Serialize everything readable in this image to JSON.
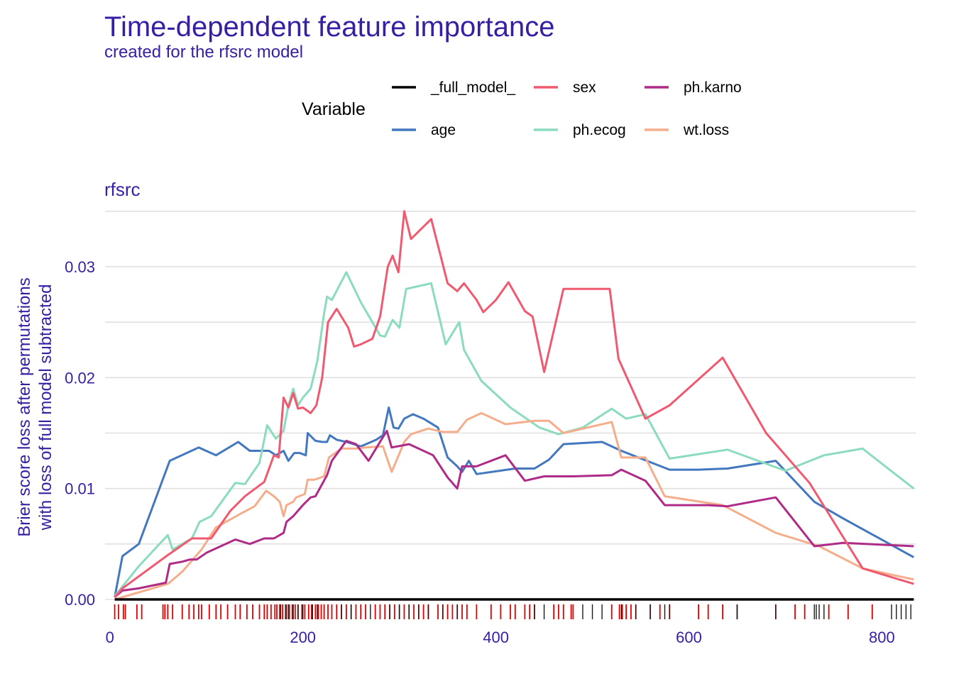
{
  "chart_data": {
    "type": "line",
    "title": "Time-dependent feature importance",
    "subtitle": "created for the rfsrc model",
    "facet_label": "rfsrc",
    "ylabel_lines": [
      "Brier score loss after permutations",
      "with loss of full model subtracted"
    ],
    "xlabel": "",
    "xlim": [
      -5,
      835
    ],
    "ylim": [
      0,
      0.0355
    ],
    "x_ticks": [
      0,
      200,
      400,
      600,
      800
    ],
    "x_tick_labels": [
      "0",
      "200",
      "400",
      "600",
      "800"
    ],
    "y_ticks": [
      0,
      0.01,
      0.02,
      0.03
    ],
    "y_tick_labels": [
      "0.00",
      "0.01",
      "0.02",
      "0.03"
    ],
    "grid": true,
    "legend": {
      "title": "Variable",
      "position": "top",
      "order": [
        "_full_model_",
        "age",
        "sex",
        "ph.ecog",
        "ph.karno",
        "wt.loss"
      ]
    },
    "series": [
      {
        "name": "_full_model_",
        "color": "#000000",
        "points": [
          [
            5,
            0
          ],
          [
            833,
            0
          ]
        ]
      },
      {
        "name": "age",
        "color": "#4378bf",
        "points": [
          [
            5,
            0.0002
          ],
          [
            13,
            0.0039
          ],
          [
            30,
            0.005
          ],
          [
            62,
            0.0125
          ],
          [
            92,
            0.0137
          ],
          [
            110,
            0.013
          ],
          [
            133,
            0.0142
          ],
          [
            145,
            0.0134
          ],
          [
            165,
            0.0134
          ],
          [
            172,
            0.013
          ],
          [
            180,
            0.0134
          ],
          [
            185,
            0.0125
          ],
          [
            191,
            0.0132
          ],
          [
            197,
            0.0132
          ],
          [
            203,
            0.013
          ],
          [
            205,
            0.015
          ],
          [
            213,
            0.0143
          ],
          [
            220,
            0.0142
          ],
          [
            225,
            0.0142
          ],
          [
            228,
            0.0148
          ],
          [
            235,
            0.0144
          ],
          [
            245,
            0.0142
          ],
          [
            260,
            0.0138
          ],
          [
            268,
            0.0141
          ],
          [
            276,
            0.0144
          ],
          [
            283,
            0.0148
          ],
          [
            289,
            0.0173
          ],
          [
            294,
            0.0155
          ],
          [
            299,
            0.0154
          ],
          [
            305,
            0.0163
          ],
          [
            314,
            0.0167
          ],
          [
            325,
            0.0163
          ],
          [
            340,
            0.0155
          ],
          [
            350,
            0.0128
          ],
          [
            360,
            0.012
          ],
          [
            365,
            0.0115
          ],
          [
            372,
            0.0125
          ],
          [
            380,
            0.0113
          ],
          [
            420,
            0.0118
          ],
          [
            440,
            0.0118
          ],
          [
            455,
            0.0126
          ],
          [
            470,
            0.014
          ],
          [
            510,
            0.0142
          ],
          [
            530,
            0.0134
          ],
          [
            580,
            0.0117
          ],
          [
            610,
            0.0117
          ],
          [
            640,
            0.0118
          ],
          [
            690,
            0.0125
          ],
          [
            730,
            0.0088
          ],
          [
            760,
            0.0073
          ],
          [
            833,
            0.0038
          ]
        ]
      },
      {
        "name": "sex",
        "color": "#f05a71",
        "points": [
          [
            5,
            0.0002
          ],
          [
            13,
            0.001
          ],
          [
            60,
            0.004
          ],
          [
            85,
            0.0055
          ],
          [
            105,
            0.0055
          ],
          [
            125,
            0.008
          ],
          [
            140,
            0.0093
          ],
          [
            160,
            0.0106
          ],
          [
            170,
            0.013
          ],
          [
            175,
            0.0128
          ],
          [
            180,
            0.0182
          ],
          [
            185,
            0.0173
          ],
          [
            190,
            0.0186
          ],
          [
            195,
            0.0172
          ],
          [
            200,
            0.0173
          ],
          [
            208,
            0.0168
          ],
          [
            214,
            0.0175
          ],
          [
            220,
            0.02
          ],
          [
            226,
            0.025
          ],
          [
            235,
            0.0262
          ],
          [
            247,
            0.0245
          ],
          [
            253,
            0.0228
          ],
          [
            260,
            0.023
          ],
          [
            272,
            0.0235
          ],
          [
            280,
            0.0255
          ],
          [
            288,
            0.03
          ],
          [
            293,
            0.031
          ],
          [
            299,
            0.0295
          ],
          [
            305,
            0.035
          ],
          [
            312,
            0.0325
          ],
          [
            333,
            0.0343
          ],
          [
            350,
            0.0285
          ],
          [
            360,
            0.0278
          ],
          [
            367,
            0.0285
          ],
          [
            380,
            0.027
          ],
          [
            387,
            0.0259
          ],
          [
            400,
            0.027
          ],
          [
            413,
            0.0286
          ],
          [
            430,
            0.026
          ],
          [
            438,
            0.0255
          ],
          [
            450,
            0.0205
          ],
          [
            470,
            0.028
          ],
          [
            490,
            0.028
          ],
          [
            518,
            0.028
          ],
          [
            527,
            0.0217
          ],
          [
            555,
            0.0163
          ],
          [
            580,
            0.0175
          ],
          [
            635,
            0.0218
          ],
          [
            680,
            0.015
          ],
          [
            725,
            0.0105
          ],
          [
            780,
            0.0028
          ],
          [
            833,
            0.0014
          ]
        ]
      },
      {
        "name": "ph.ecog",
        "color": "#8bdcbe",
        "points": [
          [
            5,
            0.0003
          ],
          [
            30,
            0.003
          ],
          [
            60,
            0.0058
          ],
          [
            65,
            0.0045
          ],
          [
            85,
            0.0055
          ],
          [
            93,
            0.007
          ],
          [
            105,
            0.0075
          ],
          [
            130,
            0.0105
          ],
          [
            140,
            0.0104
          ],
          [
            155,
            0.0123
          ],
          [
            163,
            0.0157
          ],
          [
            172,
            0.0145
          ],
          [
            180,
            0.0152
          ],
          [
            185,
            0.0175
          ],
          [
            190,
            0.019
          ],
          [
            195,
            0.0175
          ],
          [
            200,
            0.0182
          ],
          [
            208,
            0.019
          ],
          [
            215,
            0.0215
          ],
          [
            222,
            0.0258
          ],
          [
            225,
            0.0273
          ],
          [
            230,
            0.027
          ],
          [
            245,
            0.0295
          ],
          [
            260,
            0.0268
          ],
          [
            280,
            0.0238
          ],
          [
            285,
            0.0237
          ],
          [
            293,
            0.0252
          ],
          [
            300,
            0.0245
          ],
          [
            307,
            0.028
          ],
          [
            333,
            0.0285
          ],
          [
            348,
            0.023
          ],
          [
            362,
            0.025
          ],
          [
            367,
            0.0225
          ],
          [
            385,
            0.0197
          ],
          [
            415,
            0.0173
          ],
          [
            445,
            0.0155
          ],
          [
            465,
            0.0149
          ],
          [
            490,
            0.0155
          ],
          [
            520,
            0.0172
          ],
          [
            535,
            0.0163
          ],
          [
            555,
            0.0167
          ],
          [
            580,
            0.0127
          ],
          [
            640,
            0.0135
          ],
          [
            700,
            0.0116
          ],
          [
            740,
            0.013
          ],
          [
            780,
            0.0136
          ],
          [
            833,
            0.01
          ]
        ]
      },
      {
        "name": "ph.karno",
        "color": "#ae2c87",
        "points": [
          [
            5,
            0.0002
          ],
          [
            13,
            0.0008
          ],
          [
            30,
            0.001
          ],
          [
            58,
            0.0015
          ],
          [
            62,
            0.0032
          ],
          [
            75,
            0.0034
          ],
          [
            83,
            0.0036
          ],
          [
            90,
            0.0036
          ],
          [
            100,
            0.0042
          ],
          [
            130,
            0.0054
          ],
          [
            145,
            0.005
          ],
          [
            160,
            0.0055
          ],
          [
            170,
            0.0055
          ],
          [
            180,
            0.006
          ],
          [
            183,
            0.007
          ],
          [
            190,
            0.0075
          ],
          [
            195,
            0.008
          ],
          [
            200,
            0.0085
          ],
          [
            208,
            0.0092
          ],
          [
            213,
            0.0093
          ],
          [
            225,
            0.0112
          ],
          [
            230,
            0.0125
          ],
          [
            245,
            0.0143
          ],
          [
            255,
            0.014
          ],
          [
            268,
            0.0125
          ],
          [
            282,
            0.0145
          ],
          [
            287,
            0.0152
          ],
          [
            292,
            0.0137
          ],
          [
            310,
            0.014
          ],
          [
            335,
            0.013
          ],
          [
            350,
            0.011
          ],
          [
            360,
            0.01
          ],
          [
            365,
            0.012
          ],
          [
            380,
            0.012
          ],
          [
            410,
            0.013
          ],
          [
            430,
            0.0107
          ],
          [
            450,
            0.0111
          ],
          [
            480,
            0.0111
          ],
          [
            520,
            0.0112
          ],
          [
            530,
            0.0117
          ],
          [
            555,
            0.0107
          ],
          [
            575,
            0.0085
          ],
          [
            620,
            0.0085
          ],
          [
            640,
            0.0084
          ],
          [
            690,
            0.0092
          ],
          [
            730,
            0.0048
          ],
          [
            760,
            0.0051
          ],
          [
            833,
            0.0048
          ]
        ]
      },
      {
        "name": "wt.loss",
        "color": "#f5ae8c",
        "points": [
          [
            5,
            0
          ],
          [
            60,
            0.0014
          ],
          [
            75,
            0.0025
          ],
          [
            95,
            0.0045
          ],
          [
            110,
            0.0065
          ],
          [
            135,
            0.0077
          ],
          [
            150,
            0.0084
          ],
          [
            162,
            0.0098
          ],
          [
            170,
            0.0093
          ],
          [
            176,
            0.0088
          ],
          [
            180,
            0.0075
          ],
          [
            183,
            0.0085
          ],
          [
            190,
            0.0088
          ],
          [
            193,
            0.0092
          ],
          [
            202,
            0.0095
          ],
          [
            205,
            0.0108
          ],
          [
            212,
            0.0108
          ],
          [
            222,
            0.0111
          ],
          [
            227,
            0.0128
          ],
          [
            240,
            0.0136
          ],
          [
            255,
            0.0136
          ],
          [
            265,
            0.0137
          ],
          [
            283,
            0.0138
          ],
          [
            292,
            0.0115
          ],
          [
            305,
            0.0142
          ],
          [
            312,
            0.0149
          ],
          [
            330,
            0.0154
          ],
          [
            345,
            0.0151
          ],
          [
            360,
            0.0151
          ],
          [
            370,
            0.0162
          ],
          [
            385,
            0.0168
          ],
          [
            410,
            0.0158
          ],
          [
            440,
            0.0161
          ],
          [
            455,
            0.0161
          ],
          [
            470,
            0.015
          ],
          [
            520,
            0.016
          ],
          [
            530,
            0.0128
          ],
          [
            555,
            0.0128
          ],
          [
            575,
            0.0093
          ],
          [
            635,
            0.0085
          ],
          [
            690,
            0.006
          ],
          [
            735,
            0.0048
          ],
          [
            780,
            0.0028
          ],
          [
            833,
            0.0018
          ]
        ]
      }
    ],
    "rug": {
      "red_x": [
        5,
        9,
        14,
        16,
        28,
        33,
        55,
        57,
        60,
        65,
        75,
        82,
        87,
        92,
        95,
        103,
        110,
        115,
        122,
        130,
        135,
        142,
        148,
        155,
        160,
        163,
        167,
        171,
        173,
        176,
        179,
        183,
        186,
        189,
        192,
        195,
        199,
        202,
        206,
        209,
        213,
        216,
        219,
        222,
        226,
        230,
        235,
        240,
        245,
        250,
        255,
        260,
        265,
        275,
        280,
        285,
        290,
        295,
        300,
        305,
        310,
        315,
        320,
        325,
        330,
        340,
        345,
        350,
        355,
        360,
        365,
        370,
        380,
        395,
        405,
        415,
        420,
        430,
        435,
        440,
        460,
        465,
        470,
        478,
        480,
        520,
        528,
        531,
        535,
        540,
        545,
        560,
        570,
        580,
        610,
        620,
        635,
        650,
        690,
        710,
        720,
        745,
        765,
        790
      ],
      "black_x": [
        177,
        182,
        185,
        190,
        195,
        200,
        210,
        215,
        240,
        250,
        270,
        290,
        300,
        310,
        320,
        330,
        345,
        360,
        440,
        450,
        490,
        500,
        510,
        530,
        545,
        560,
        575,
        580,
        650,
        690,
        730,
        732,
        735,
        740,
        810,
        815,
        820,
        825,
        830
      ]
    }
  }
}
